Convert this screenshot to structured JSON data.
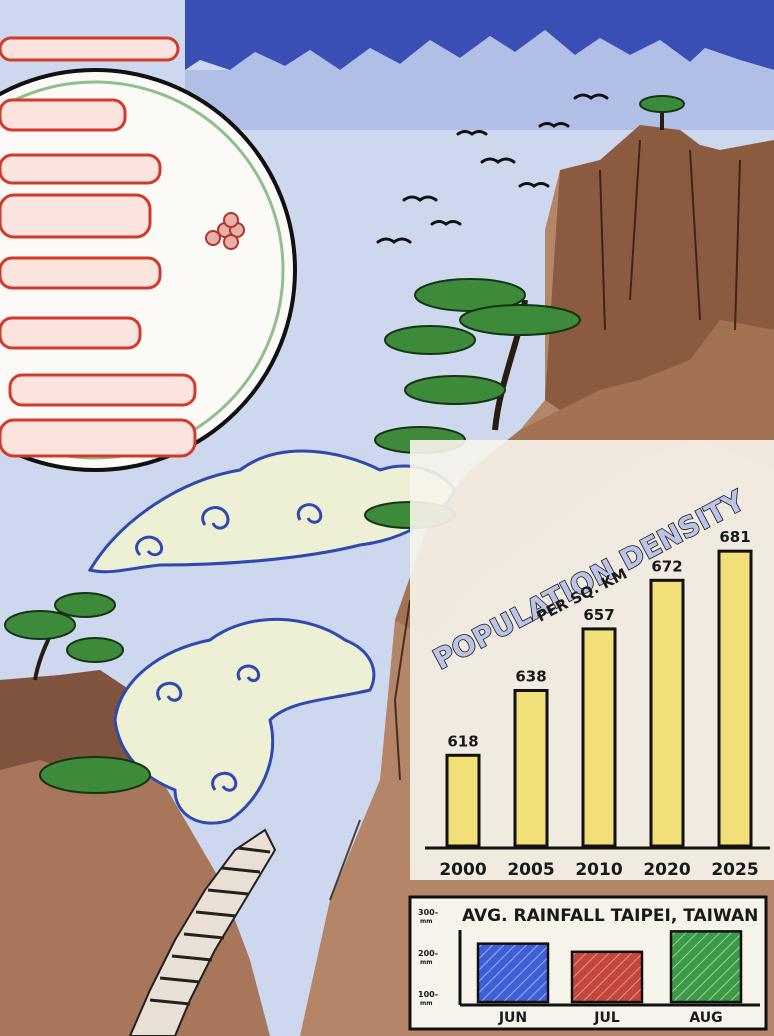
{
  "colors": {
    "sky": "#3a4fb5",
    "sky_light": "#c9d5ee",
    "cliff": "#8a5a3c",
    "cliff_light": "#c9a98f",
    "tree": "#3d8a3a",
    "cloud": "#2f49b0",
    "seal_red": "#d23a2a",
    "bar_yellow": "#f2df78",
    "jun_blue": "#3f5fd6",
    "jul_red": "#c3473d",
    "aug_green": "#3c9a46"
  },
  "chart_data": [
    {
      "type": "bar",
      "title": "POPULATION DENSITY",
      "subtitle": "PER SQ. KM",
      "categories": [
        "2000",
        "2005",
        "2010",
        "2020",
        "2025"
      ],
      "values": [
        618,
        638,
        657,
        672,
        681
      ],
      "data_labels": [
        "618",
        "638",
        "657",
        "672",
        "681"
      ],
      "grid": false,
      "legend": "none"
    },
    {
      "type": "bar",
      "title": "AVG. RAINFALL TAIPEI, TAIWAN",
      "categories": [
        "JUN",
        "JUL",
        "AUG"
      ],
      "values": [
        230,
        210,
        260
      ],
      "yticks": [
        "300-\nmm",
        "200-\nmm",
        "100-\nmm"
      ],
      "ytick_values": [
        300,
        200,
        100
      ],
      "ylim": [
        80,
        300
      ],
      "grid": false,
      "legend": "none"
    }
  ]
}
